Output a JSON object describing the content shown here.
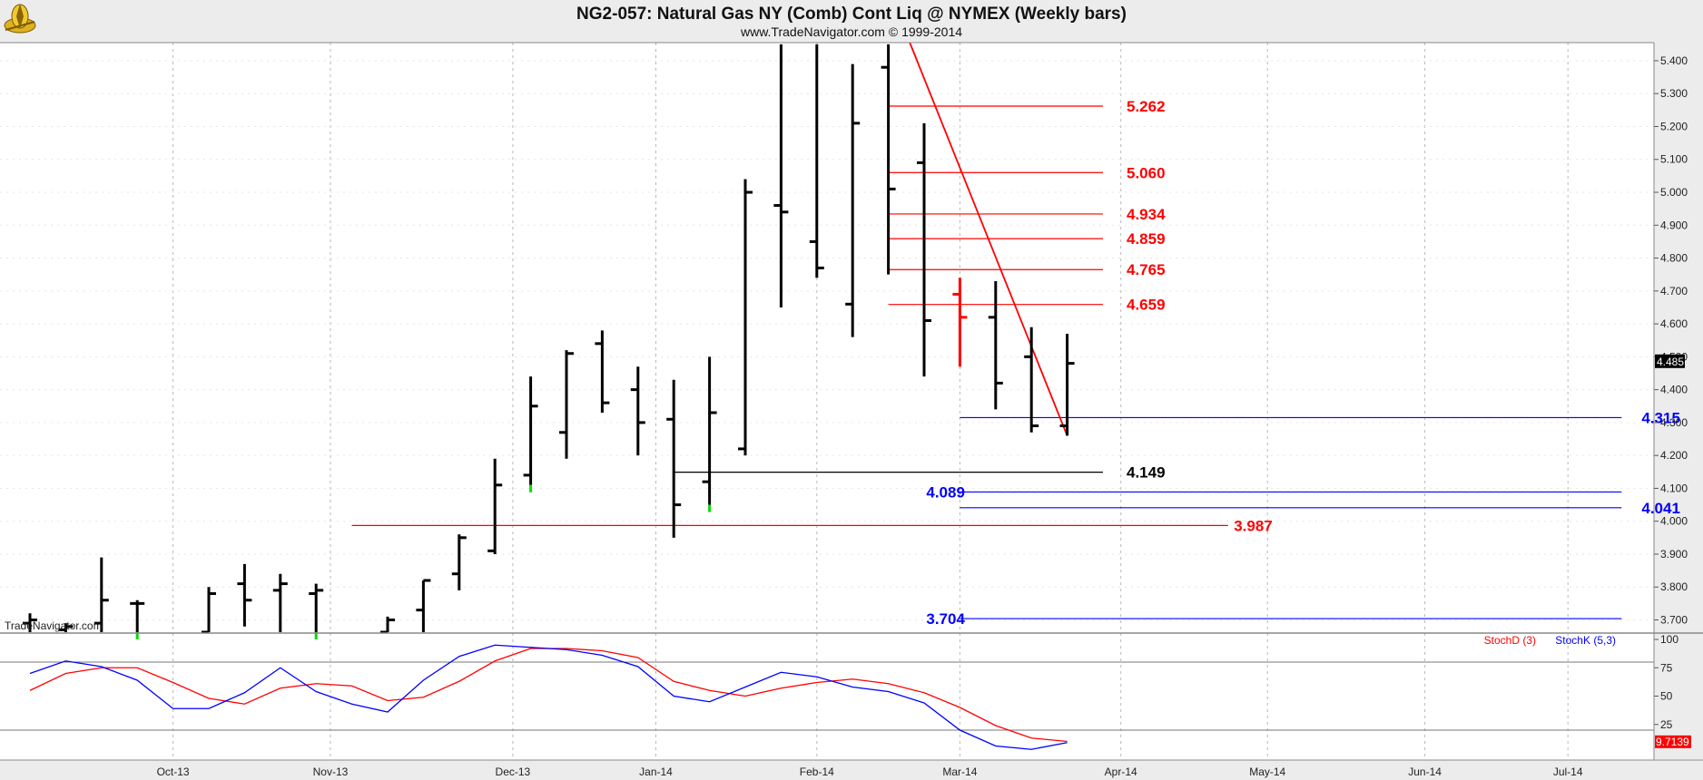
{
  "header": {
    "title": "NG2-057:  Natural Gas NY (Comb) Cont Liq @ NYMEX  (Weekly bars)",
    "subtitle": "www.TradeNavigator.com © 1999-2014",
    "logo_icon": "trade-navigator-compass-logo-icon"
  },
  "watermark": "TradeNavigator.com",
  "colors": {
    "background": "#ffffff",
    "panel_bg": "#ececec",
    "up_bar": "#000000",
    "highlight_bar": "#00dd00",
    "red": "#ff0000",
    "blue": "#0000ff",
    "grid": "#b8b8b8"
  },
  "chart_data": [
    {
      "type": "ohlc",
      "name": "price",
      "y_ticks": [
        "5.400",
        "5.300",
        "5.200",
        "5.100",
        "5.000",
        "4.900",
        "4.800",
        "4.700",
        "4.600",
        "4.500",
        "4.400",
        "4.300",
        "4.200",
        "4.100",
        "4.000",
        "3.900",
        "3.800",
        "3.700"
      ],
      "ylim": [
        3.66,
        5.455
      ],
      "last_price_label": "4.485",
      "x_ticks": [
        {
          "label": "Oct-13",
          "week": 4
        },
        {
          "label": "Nov-13",
          "week": 8.4
        },
        {
          "label": "Dec-13",
          "week": 13.5
        },
        {
          "label": "Jan-14",
          "week": 17.5
        },
        {
          "label": "Feb-14",
          "week": 22
        },
        {
          "label": "Mar-14",
          "week": 26
        },
        {
          "label": "Apr-14",
          "week": 30.5
        },
        {
          "label": "May-14",
          "week": 34.6
        },
        {
          "label": "Jun-14",
          "week": 39
        },
        {
          "label": "Jul-14",
          "week": 43
        }
      ],
      "bars": [
        {
          "w": 0,
          "o": 3.69,
          "h": 3.72,
          "l": 3.66,
          "c": 3.7
        },
        {
          "w": 1,
          "o": 3.67,
          "h": 3.69,
          "l": 3.66,
          "c": 3.68
        },
        {
          "w": 2,
          "o": 3.69,
          "h": 3.89,
          "l": 3.66,
          "c": 3.76
        },
        {
          "w": 3,
          "o": 3.75,
          "h": 3.76,
          "l": 3.66,
          "c": 3.75,
          "hl": true
        },
        {
          "w": 5,
          "o": 3.66,
          "h": 3.8,
          "l": 3.66,
          "c": 3.78
        },
        {
          "w": 6,
          "o": 3.81,
          "h": 3.87,
          "l": 3.68,
          "c": 3.76
        },
        {
          "w": 7,
          "o": 3.79,
          "h": 3.84,
          "l": 3.66,
          "c": 3.81
        },
        {
          "w": 8,
          "o": 3.78,
          "h": 3.81,
          "l": 3.66,
          "c": 3.79,
          "hl": true
        },
        {
          "w": 10,
          "o": 3.66,
          "h": 3.71,
          "l": 3.66,
          "c": 3.7
        },
        {
          "w": 11,
          "o": 3.73,
          "h": 3.82,
          "l": 3.66,
          "c": 3.82
        },
        {
          "w": 12,
          "o": 3.84,
          "h": 3.96,
          "l": 3.79,
          "c": 3.95
        },
        {
          "w": 13,
          "o": 3.91,
          "h": 4.19,
          "l": 3.9,
          "c": 4.11
        },
        {
          "w": 14,
          "o": 4.14,
          "h": 4.44,
          "l": 4.11,
          "c": 4.35,
          "hl": true
        },
        {
          "w": 15,
          "o": 4.27,
          "h": 4.52,
          "l": 4.19,
          "c": 4.51
        },
        {
          "w": 16,
          "o": 4.54,
          "h": 4.58,
          "l": 4.33,
          "c": 4.36
        },
        {
          "w": 17,
          "o": 4.4,
          "h": 4.47,
          "l": 4.2,
          "c": 4.3
        },
        {
          "w": 18,
          "o": 4.31,
          "h": 4.43,
          "l": 3.95,
          "c": 4.05
        },
        {
          "w": 19,
          "o": 4.12,
          "h": 4.5,
          "l": 4.05,
          "c": 4.33,
          "hl": true
        },
        {
          "w": 20,
          "o": 4.22,
          "h": 5.04,
          "l": 4.2,
          "c": 5.0
        },
        {
          "w": 21,
          "o": 4.96,
          "h": 5.45,
          "l": 4.65,
          "c": 4.94
        },
        {
          "w": 22,
          "o": 4.85,
          "h": 5.45,
          "l": 4.74,
          "c": 4.77
        },
        {
          "w": 23,
          "o": 4.66,
          "h": 5.39,
          "l": 4.56,
          "c": 5.21
        },
        {
          "w": 24,
          "o": 5.38,
          "h": 5.45,
          "l": 4.75,
          "c": 5.01
        },
        {
          "w": 25,
          "o": 5.09,
          "h": 5.21,
          "l": 4.44,
          "c": 4.61
        },
        {
          "w": 26,
          "o": 4.69,
          "h": 4.74,
          "l": 4.47,
          "c": 4.62,
          "red": true
        },
        {
          "w": 27,
          "o": 4.62,
          "h": 4.73,
          "l": 4.34,
          "c": 4.42
        },
        {
          "w": 28,
          "o": 4.5,
          "h": 4.59,
          "l": 4.27,
          "c": 4.29
        },
        {
          "w": 29,
          "o": 4.29,
          "h": 4.57,
          "l": 4.26,
          "c": 4.48
        }
      ],
      "levels": [
        {
          "label": "5.262",
          "value": 5.262,
          "color": "red",
          "from": 24,
          "to": 30,
          "label_w": 31.2
        },
        {
          "label": "5.060",
          "value": 5.06,
          "color": "red",
          "from": 24,
          "to": 30,
          "label_w": 31.2
        },
        {
          "label": "4.934",
          "value": 4.934,
          "color": "red",
          "from": 24,
          "to": 30,
          "label_w": 31.2
        },
        {
          "label": "4.859",
          "value": 4.859,
          "color": "red",
          "from": 24,
          "to": 30,
          "label_w": 31.2
        },
        {
          "label": "4.765",
          "value": 4.765,
          "color": "red",
          "from": 24,
          "to": 30,
          "label_w": 31.2
        },
        {
          "label": "4.659",
          "value": 4.659,
          "color": "red",
          "from": 24,
          "to": 30,
          "label_w": 31.2
        },
        {
          "label": "4.315",
          "value": 4.315,
          "color": "blue",
          "from": 26,
          "to": 44.5,
          "label_w": 45.6
        },
        {
          "label": "4.149",
          "value": 4.149,
          "color": "black",
          "from": 18,
          "to": 30,
          "label_w": 31.2
        },
        {
          "label": "4.089",
          "value": 4.089,
          "color": "blue",
          "from": 26,
          "to": 44.5,
          "label_w": 25.6
        },
        {
          "label": "4.041",
          "value": 4.041,
          "color": "blue",
          "from": 26,
          "to": 44.5,
          "label_w": 45.6
        },
        {
          "label": "3.987",
          "value": 3.987,
          "color": "red",
          "from": 9,
          "to": 33.5,
          "label_w": 34.2
        },
        {
          "label": "3.704",
          "value": 3.704,
          "color": "blue",
          "from": 26,
          "to": 44.5,
          "label_w": 25.6
        }
      ],
      "trendline": {
        "from": {
          "w": 24.6,
          "y": 5.455
        },
        "to": {
          "w": 29,
          "y": 4.26
        },
        "color": "red"
      }
    },
    {
      "type": "line",
      "name": "stochastic",
      "y_ticks": [
        "100",
        "75",
        "50",
        "25"
      ],
      "ylim": [
        0,
        100
      ],
      "reference_lines": [
        80,
        20
      ],
      "last_value_label": "9.7139",
      "series": [
        {
          "name": "StochD (3)",
          "color": "red",
          "x": [
            0,
            1,
            2,
            3,
            4,
            5,
            6,
            7,
            8,
            9,
            10,
            11,
            12,
            13,
            14,
            15,
            16,
            17,
            18,
            19,
            20,
            21,
            22,
            23,
            24,
            25,
            26,
            27,
            28,
            29
          ],
          "values": [
            55,
            70,
            75,
            75,
            62,
            48,
            43,
            57,
            61,
            59,
            46,
            49,
            63,
            81,
            92,
            92,
            90,
            84,
            63,
            55,
            50,
            57,
            62,
            65,
            61,
            53,
            40,
            24,
            13,
            10
          ]
        },
        {
          "name": "StochK (5,3)",
          "color": "blue",
          "x": [
            0,
            1,
            2,
            3,
            4,
            5,
            6,
            7,
            8,
            9,
            10,
            11,
            12,
            13,
            14,
            15,
            16,
            17,
            18,
            19,
            20,
            21,
            22,
            23,
            24,
            25,
            26,
            27,
            28,
            29
          ],
          "values": [
            70,
            81,
            76,
            64,
            39,
            39,
            53,
            75,
            54,
            43,
            36,
            64,
            85,
            95,
            93,
            91,
            86,
            76,
            50,
            45,
            58,
            71,
            67,
            58,
            54,
            44,
            20,
            6,
            3,
            9
          ]
        }
      ]
    }
  ]
}
